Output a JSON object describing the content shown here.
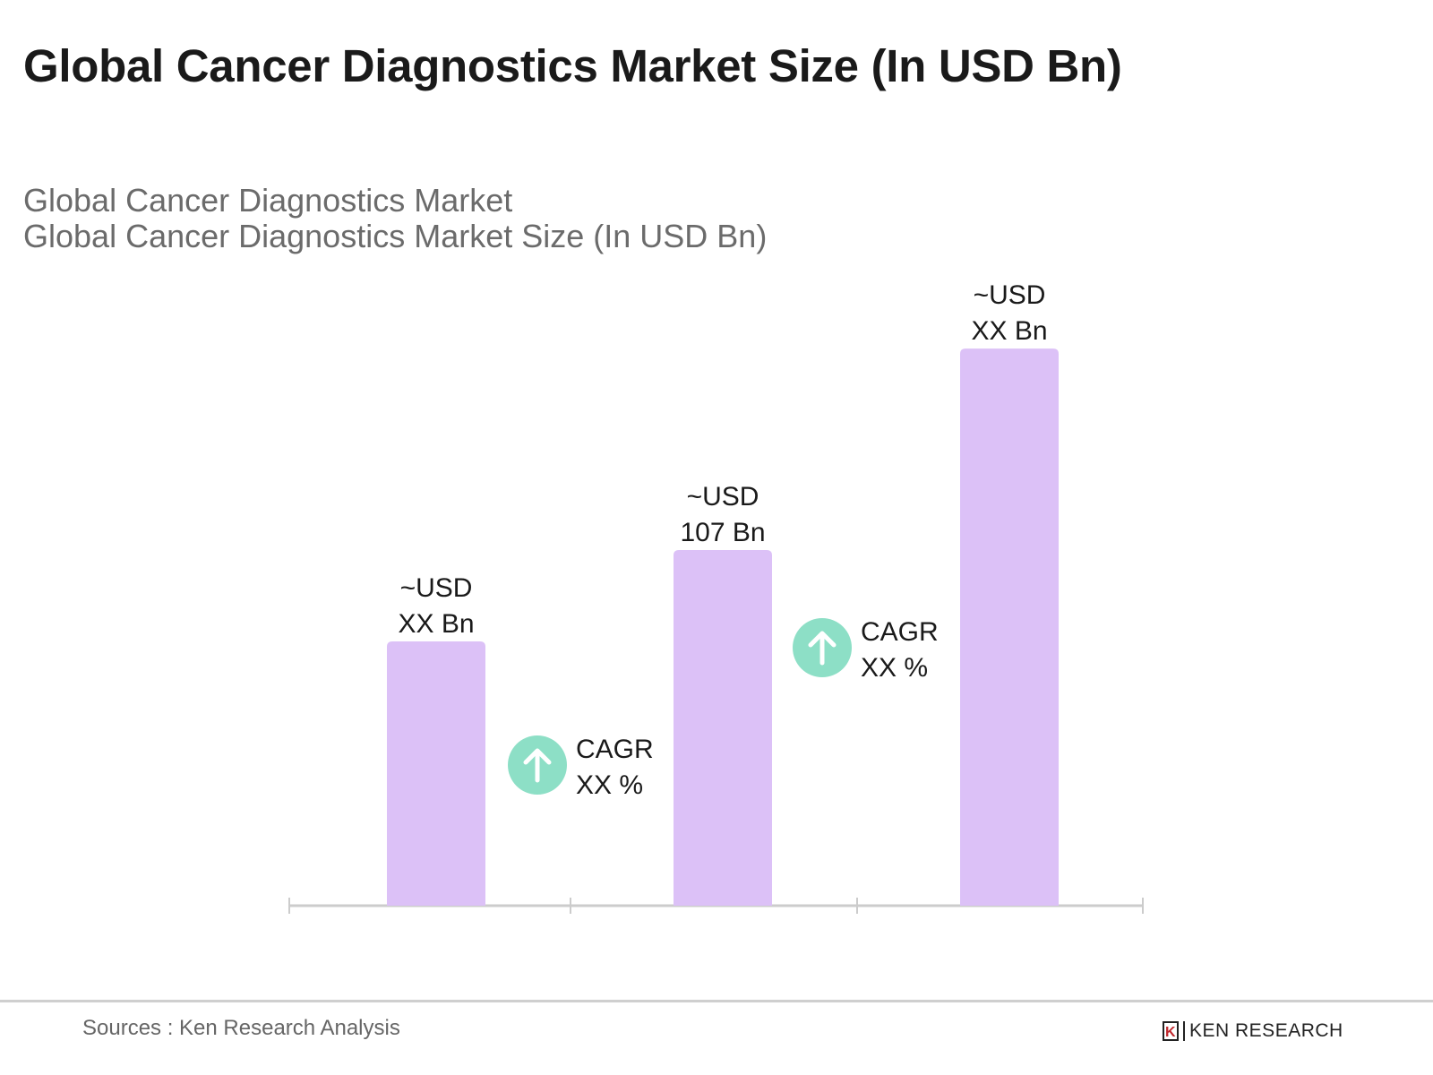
{
  "title": "Global Cancer Diagnostics Market Size (In USD Bn)",
  "subtitle_lines": [
    "Global Cancer Diagnostics Market",
    "Global Cancer Diagnostics Market Size (In USD Bn)"
  ],
  "footer": {
    "sources": "Sources : Ken Research Analysis",
    "logo_text": "KEN RESEARCH"
  },
  "colors": {
    "bar": "#dcc1f7",
    "cagr_circle": "#8ddfc6",
    "axis": "#cccccc"
  },
  "chart_data": {
    "type": "bar",
    "categories": [
      "",
      "",
      ""
    ],
    "values": [
      79.5,
      107,
      167.6
    ],
    "data_labels": [
      [
        "~USD",
        "XX Bn"
      ],
      [
        "~USD",
        "107 Bn"
      ],
      [
        "~USD",
        "XX Bn"
      ]
    ],
    "annotations": [
      {
        "icon": "arrow-up-icon",
        "lines": [
          "CAGR",
          "XX %"
        ],
        "between": [
          0,
          1
        ]
      },
      {
        "icon": "arrow-up-icon",
        "lines": [
          "CAGR",
          "XX %"
        ],
        "between": [
          1,
          2
        ]
      }
    ],
    "ylim": [
      0,
      180
    ],
    "grid": false,
    "legend": "none"
  }
}
